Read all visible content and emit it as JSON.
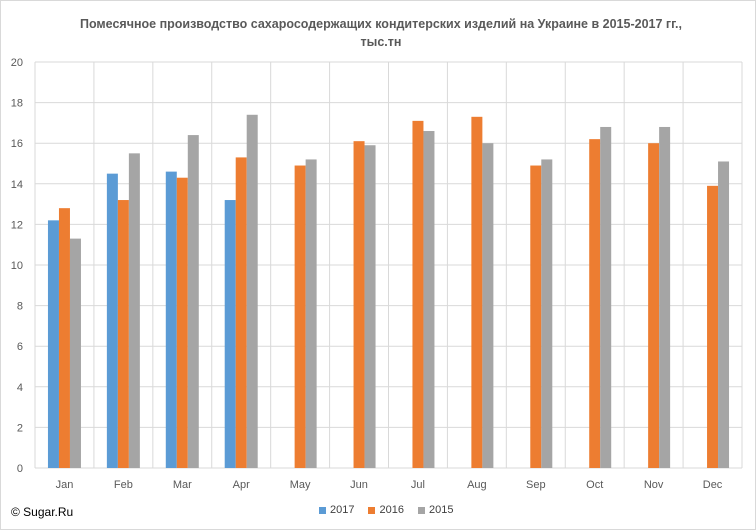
{
  "chart_data": {
    "type": "bar",
    "title_line1": "Помесячное производство сахаросодержащих кондитерских изделий на Украине в 2015-2017 гг.,",
    "title_line2": "тыс.тн",
    "categories": [
      "Jan",
      "Feb",
      "Mar",
      "Apr",
      "May",
      "Jun",
      "Jul",
      "Aug",
      "Sep",
      "Oct",
      "Nov",
      "Dec"
    ],
    "series": [
      {
        "name": "2017",
        "color": "#5b9bd5",
        "values": [
          12.2,
          14.5,
          14.6,
          13.2,
          null,
          null,
          null,
          null,
          null,
          null,
          null,
          null
        ]
      },
      {
        "name": "2016",
        "color": "#ed7d31",
        "values": [
          12.8,
          13.2,
          14.3,
          15.3,
          14.9,
          16.1,
          17.1,
          17.3,
          14.9,
          16.2,
          16.0,
          13.9
        ]
      },
      {
        "name": "2015",
        "color": "#a5a5a5",
        "values": [
          11.3,
          15.5,
          16.4,
          17.4,
          15.2,
          15.9,
          16.6,
          16.0,
          15.2,
          16.8,
          16.8,
          15.1
        ]
      }
    ],
    "ylim": [
      0,
      20
    ],
    "yticks": [
      "0",
      "2",
      "4",
      "6",
      "8",
      "10",
      "12",
      "14",
      "16",
      "18",
      "20"
    ],
    "grid": true,
    "legend_position": "bottom"
  },
  "copyright": "© Sugar.Ru"
}
